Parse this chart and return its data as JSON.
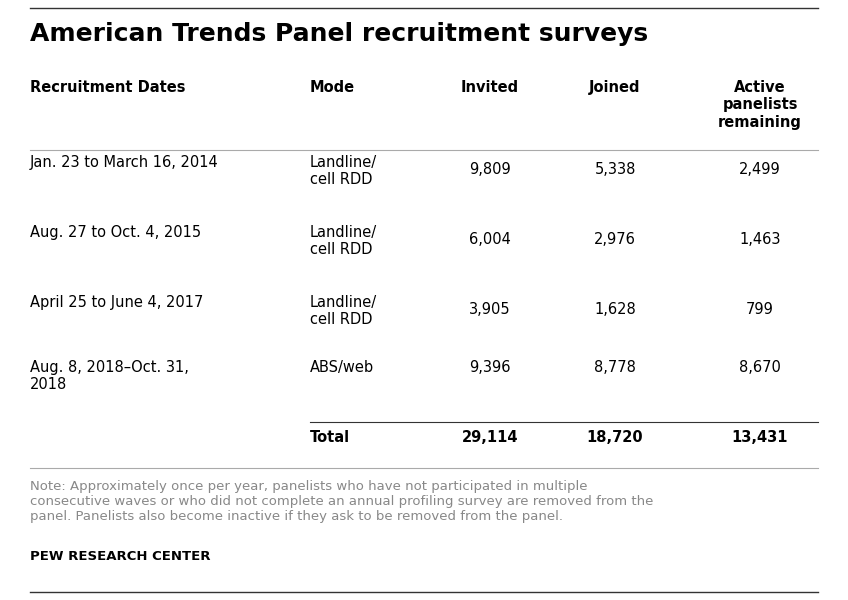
{
  "title": "American Trends Panel recruitment surveys",
  "background_color": "#ffffff",
  "top_line_color": "#333333",
  "bottom_line_color": "#333333",
  "border_color": "#cccccc",
  "col_headers": [
    "Recruitment Dates",
    "Mode",
    "Invited",
    "Joined",
    "Active\npanelists\nremaining"
  ],
  "rows": [
    {
      "date": "Jan. 23 to March 16, 2014",
      "mode": "Landline/\ncell RDD",
      "invited": "9,809",
      "joined": "5,338",
      "active": "2,499",
      "bold": false
    },
    {
      "date": "Aug. 27 to Oct. 4, 2015",
      "mode": "Landline/\ncell RDD",
      "invited": "6,004",
      "joined": "2,976",
      "active": "1,463",
      "bold": false
    },
    {
      "date": "April 25 to June 4, 2017",
      "mode": "Landline/\ncell RDD",
      "invited": "3,905",
      "joined": "1,628",
      "active": "799",
      "bold": false
    },
    {
      "date": "Aug. 8, 2018–Oct. 31,\n2018",
      "mode": "ABS/web",
      "invited": "9,396",
      "joined": "8,778",
      "active": "8,670",
      "bold": false
    },
    {
      "date": "",
      "mode": "Total",
      "invited": "29,114",
      "joined": "18,720",
      "active": "13,431",
      "bold": true
    }
  ],
  "note_color": "#888888",
  "note_text": "Note: Approximately once per year, panelists who have not participated in multiple\nconsecutive waves or who did not complete an annual profiling survey are removed from the\npanel. Panelists also become inactive if they ask to be removed from the panel.",
  "footer_text": "PEW RESEARCH CENTER",
  "title_fontsize": 18,
  "header_fontsize": 10.5,
  "data_fontsize": 10.5,
  "note_fontsize": 9.5,
  "footer_fontsize": 9.5
}
